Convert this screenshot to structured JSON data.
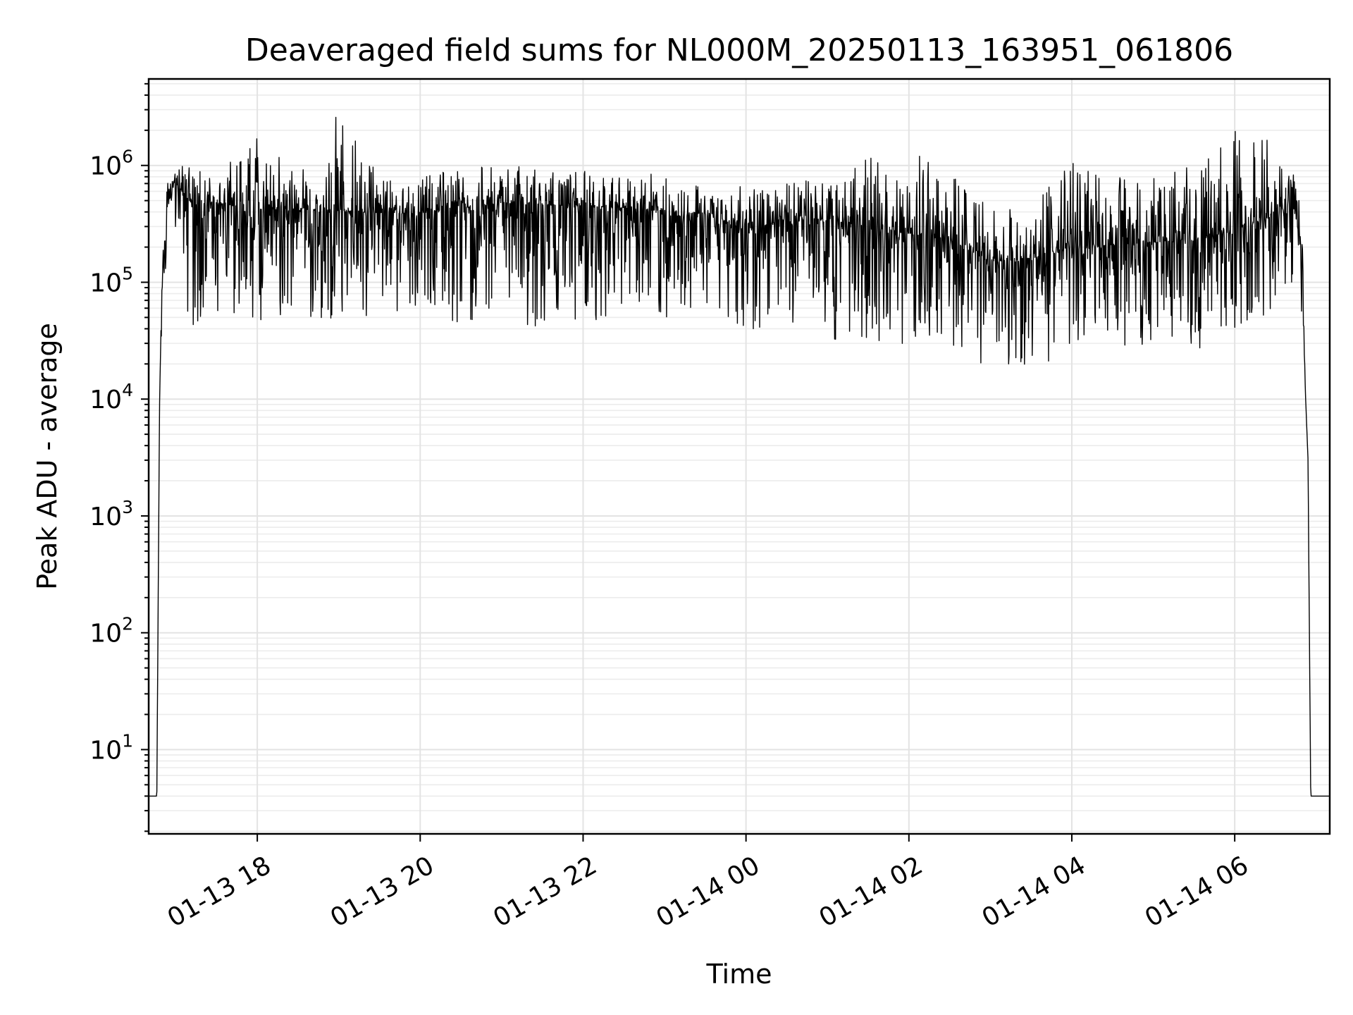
{
  "chart_data": {
    "type": "line",
    "title": "Deaveraged field sums for NL000M_20250113_163951_061806",
    "xlabel": "Time",
    "ylabel": "Peak ADU - average",
    "yscale": "log",
    "grid": true,
    "line_color": "#000000",
    "xlim": [
      "2025-01-13 16:40",
      "2025-01-14 07:10"
    ],
    "ylim": [
      1.9,
      5500000
    ],
    "x_ticks": [
      {
        "value": "2025-01-13 18:00",
        "label": "01-13 18"
      },
      {
        "value": "2025-01-13 20:00",
        "label": "01-13 20"
      },
      {
        "value": "2025-01-13 22:00",
        "label": "01-13 22"
      },
      {
        "value": "2025-01-14 00:00",
        "label": "01-14 00"
      },
      {
        "value": "2025-01-14 02:00",
        "label": "01-14 02"
      },
      {
        "value": "2025-01-14 04:00",
        "label": "01-14 04"
      },
      {
        "value": "2025-01-14 06:00",
        "label": "01-14 06"
      }
    ],
    "y_ticks": [
      {
        "value": 10,
        "base": "10",
        "exp": "1"
      },
      {
        "value": 100,
        "base": "10",
        "exp": "2"
      },
      {
        "value": 1000,
        "base": "10",
        "exp": "3"
      },
      {
        "value": 10000,
        "base": "10",
        "exp": "4"
      },
      {
        "value": 100000,
        "base": "10",
        "exp": "5"
      },
      {
        "value": 1000000,
        "base": "10",
        "exp": "6"
      }
    ],
    "series": [
      {
        "x": [
          "2025-01-13 16:40",
          "2025-01-13 16:46",
          "2025-01-13 16:48",
          "2025-01-13 16:50",
          "2025-01-13 16:55",
          "2025-01-13 17:00",
          "2025-01-13 17:10",
          "2025-01-13 17:30",
          "2025-01-13 18:00",
          "2025-01-13 18:30",
          "2025-01-13 19:00",
          "2025-01-13 19:30",
          "2025-01-13 20:00",
          "2025-01-13 20:30",
          "2025-01-13 21:00",
          "2025-01-13 21:30",
          "2025-01-13 22:00",
          "2025-01-13 22:30",
          "2025-01-13 23:00",
          "2025-01-13 23:30",
          "2025-01-14 00:00",
          "2025-01-14 00:30",
          "2025-01-14 01:00",
          "2025-01-14 01:30",
          "2025-01-14 02:00",
          "2025-01-14 02:30",
          "2025-01-14 03:00",
          "2025-01-14 03:30",
          "2025-01-14 04:00",
          "2025-01-14 04:30",
          "2025-01-14 05:00",
          "2025-01-14 05:30",
          "2025-01-14 06:00",
          "2025-01-14 06:30",
          "2025-01-14 06:45",
          "2025-01-14 06:50",
          "2025-01-14 06:52",
          "2025-01-14 06:54",
          "2025-01-14 06:56",
          "2025-01-14 07:10"
        ],
        "y": [
          4,
          4,
          9000,
          150000,
          500000,
          700000,
          500000,
          480000,
          420000,
          430000,
          410000,
          390000,
          390000,
          430000,
          470000,
          460000,
          450000,
          430000,
          410000,
          380000,
          280000,
          330000,
          340000,
          300000,
          260000,
          230000,
          150000,
          160000,
          190000,
          210000,
          220000,
          230000,
          280000,
          380000,
          550000,
          150000,
          12000,
          3000,
          4,
          4
        ],
        "high": [
          4,
          4,
          9000,
          400000,
          900000,
          900000,
          1100000,
          800000,
          1900000,
          800000,
          2900000,
          800000,
          900000,
          950000,
          1000000,
          950000,
          900000,
          880000,
          850000,
          800000,
          650000,
          700000,
          800000,
          1150000,
          1500000,
          900000,
          450000,
          430000,
          1300000,
          900000,
          900000,
          1100000,
          2400000,
          1500000,
          900000,
          300000,
          12000,
          3000,
          4,
          4
        ],
        "low": [
          4,
          4,
          9000,
          60000,
          200000,
          250000,
          40000,
          50000,
          45000,
          50000,
          45000,
          50000,
          48000,
          45000,
          50000,
          40000,
          45000,
          48000,
          45000,
          48000,
          40000,
          40000,
          30000,
          30000,
          25000,
          30000,
          18000,
          18000,
          25000,
          30000,
          25000,
          25000,
          40000,
          50000,
          100000,
          50000,
          12000,
          3000,
          4,
          4
        ]
      }
    ]
  }
}
